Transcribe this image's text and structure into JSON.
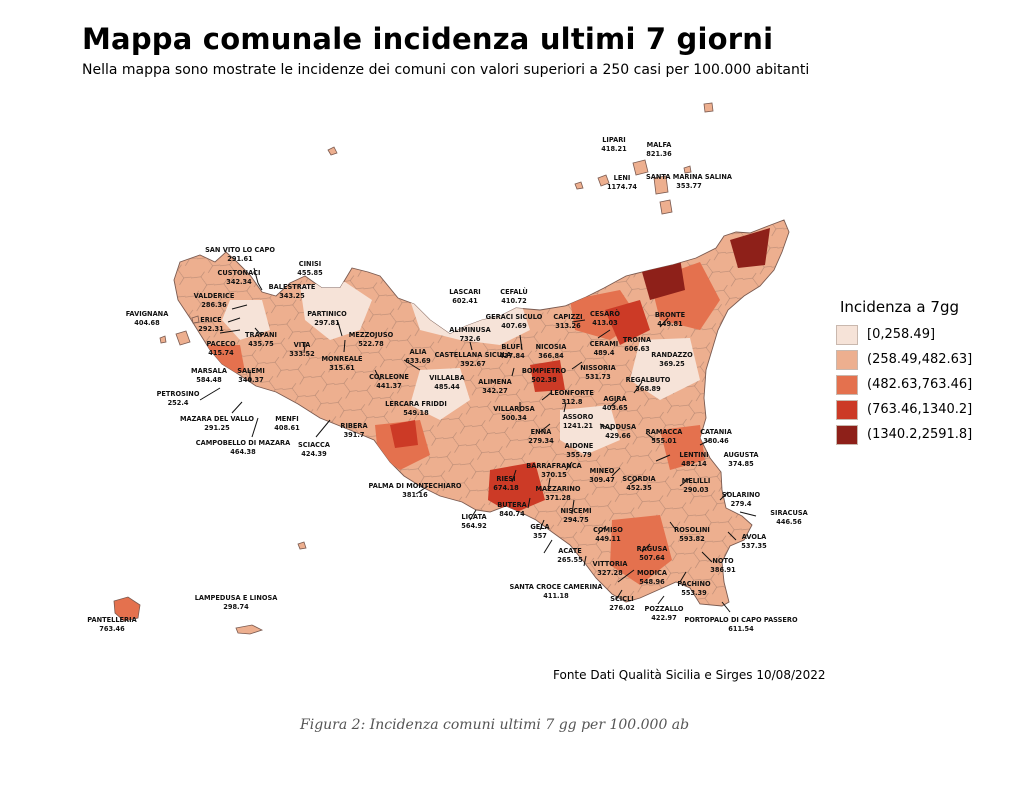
{
  "title": "Mappa comunale incidenza ultimi 7 giorni",
  "subtitle": "Nella mappa sono mostrate le incidenze dei comuni con valori superiori a 250 casi per 100.000 abitanti",
  "source": "Fonte Dati Qualità Sicilia e Sirges 10/08/2022",
  "caption": "Figura 2: Incidenza comuni ultimi 7 gg per 100.000 ab",
  "legend": {
    "title": "Incidenza a 7gg",
    "classes": [
      {
        "label": "[0,258.49]",
        "color": "#f6e3d8"
      },
      {
        "label": "(258.49,482.63]",
        "color": "#edaf8f"
      },
      {
        "label": "(482.63,763.46]",
        "color": "#e4714e"
      },
      {
        "label": "(763.46,1340.2]",
        "color": "#cc3a26"
      },
      {
        "label": "(1340.2,2591.8]",
        "color": "#8e2019"
      }
    ]
  },
  "municipalities": [
    {
      "name": "LIPARI",
      "value": "418.21"
    },
    {
      "name": "MALFA",
      "value": "821.36"
    },
    {
      "name": "LENI",
      "value": "1174.74"
    },
    {
      "name": "SANTA MARINA SALINA",
      "value": "353.77"
    },
    {
      "name": "SAN VITO LO CAPO",
      "value": "291.61"
    },
    {
      "name": "CINISI",
      "value": "455.85"
    },
    {
      "name": "CUSTONACI",
      "value": "342.34"
    },
    {
      "name": "BALESTRATE",
      "value": "343.25"
    },
    {
      "name": "VALDERICE",
      "value": "286.36"
    },
    {
      "name": "FAVIGNANA",
      "value": "404.68"
    },
    {
      "name": "ERICE",
      "value": "292.31"
    },
    {
      "name": "PARTINICO",
      "value": "297.81"
    },
    {
      "name": "TRAPANI",
      "value": "435.75"
    },
    {
      "name": "MEZZOJUSO",
      "value": "522.78"
    },
    {
      "name": "PACECO",
      "value": "415.74"
    },
    {
      "name": "VITA",
      "value": "333.52"
    },
    {
      "name": "MONREALE",
      "value": "315.61"
    },
    {
      "name": "MARSALA",
      "value": "584.48"
    },
    {
      "name": "SALEMI",
      "value": "340.37"
    },
    {
      "name": "CORLEONE",
      "value": "441.37"
    },
    {
      "name": "PETROSINO",
      "value": "252.4"
    },
    {
      "name": "MAZARA DEL VALLO",
      "value": "291.25"
    },
    {
      "name": "MENFI",
      "value": "408.61"
    },
    {
      "name": "CAMPOBELLO DI MAZARA",
      "value": "464.38"
    },
    {
      "name": "SCIACCA",
      "value": "424.39"
    },
    {
      "name": "RIBERA",
      "value": "391.7"
    },
    {
      "name": "LERCARA FRIDDI",
      "value": "549.18"
    },
    {
      "name": "LASCARI",
      "value": "602.41"
    },
    {
      "name": "CEFALÙ",
      "value": "410.72"
    },
    {
      "name": "GERACI SICULO",
      "value": "407.69"
    },
    {
      "name": "CAPIZZI",
      "value": "313.26"
    },
    {
      "name": "CESARÒ",
      "value": "413.03"
    },
    {
      "name": "BRONTE",
      "value": "449.81"
    },
    {
      "name": "ALIMINUSA",
      "value": "732.6"
    },
    {
      "name": "ALIA",
      "value": "633.69"
    },
    {
      "name": "CASTELLANA SICULA",
      "value": "392.67"
    },
    {
      "name": "BLUFI",
      "value": "437.84"
    },
    {
      "name": "NICOSIA",
      "value": "366.84"
    },
    {
      "name": "CERAMI",
      "value": "489.4"
    },
    {
      "name": "TROINA",
      "value": "606.63"
    },
    {
      "name": "RANDAZZO",
      "value": "369.25"
    },
    {
      "name": "VILLALBA",
      "value": "485.44"
    },
    {
      "name": "ALIMENA",
      "value": "342.27"
    },
    {
      "name": "BOMPIETRO",
      "value": "502.38"
    },
    {
      "name": "NISSORIA",
      "value": "531.73"
    },
    {
      "name": "REGALBUTO",
      "value": "368.89"
    },
    {
      "name": "LEONFORTE",
      "value": "312.8"
    },
    {
      "name": "AGIRA",
      "value": "403.65"
    },
    {
      "name": "VILLAROSA",
      "value": "500.34"
    },
    {
      "name": "ASSORO",
      "value": "1241.21"
    },
    {
      "name": "ENNA",
      "value": "279.34"
    },
    {
      "name": "RADDUSA",
      "value": "429.66"
    },
    {
      "name": "RAMACCA",
      "value": "555.01"
    },
    {
      "name": "CATANIA",
      "value": "380.46"
    },
    {
      "name": "AIDONE",
      "value": "355.79"
    },
    {
      "name": "LENTINI",
      "value": "482.14"
    },
    {
      "name": "AUGUSTA",
      "value": "374.85"
    },
    {
      "name": "BARRAFRANCA",
      "value": "370.15"
    },
    {
      "name": "MINEO",
      "value": "309.47"
    },
    {
      "name": "SCORDIA",
      "value": "452.35"
    },
    {
      "name": "MELILLI",
      "value": "290.03"
    },
    {
      "name": "RIESI",
      "value": "674.18"
    },
    {
      "name": "MAZZARINO",
      "value": "371.28"
    },
    {
      "name": "PALMA DI MONTECHIARO",
      "value": "381.16"
    },
    {
      "name": "SOLARINO",
      "value": "279.4"
    },
    {
      "name": "BUTERA",
      "value": "840.74"
    },
    {
      "name": "SIRACUSA",
      "value": "446.56"
    },
    {
      "name": "NISCEMI",
      "value": "294.75"
    },
    {
      "name": "LICATA",
      "value": "564.92"
    },
    {
      "name": "ROSOLINI",
      "value": "593.82"
    },
    {
      "name": "AVOLA",
      "value": "537.35"
    },
    {
      "name": "GELA",
      "value": "357"
    },
    {
      "name": "COMISO",
      "value": "449.11"
    },
    {
      "name": "RAGUSA",
      "value": "507.64"
    },
    {
      "name": "NOTO",
      "value": "386.91"
    },
    {
      "name": "ACATE",
      "value": "265.55"
    },
    {
      "name": "VITTORIA",
      "value": "327.28"
    },
    {
      "name": "MODICA",
      "value": "548.96"
    },
    {
      "name": "SANTA CROCE CAMERINA",
      "value": "411.18"
    },
    {
      "name": "PACHINO",
      "value": "553.39"
    },
    {
      "name": "SCICLI",
      "value": "276.02"
    },
    {
      "name": "POZZALLO",
      "value": "422.97"
    },
    {
      "name": "PORTOPALO DI CAPO PASSERO",
      "value": "611.54"
    },
    {
      "name": "LAMPEDUSA E LINOSA",
      "value": "298.74"
    },
    {
      "name": "PANTELLERIA",
      "value": "763.46"
    }
  ]
}
